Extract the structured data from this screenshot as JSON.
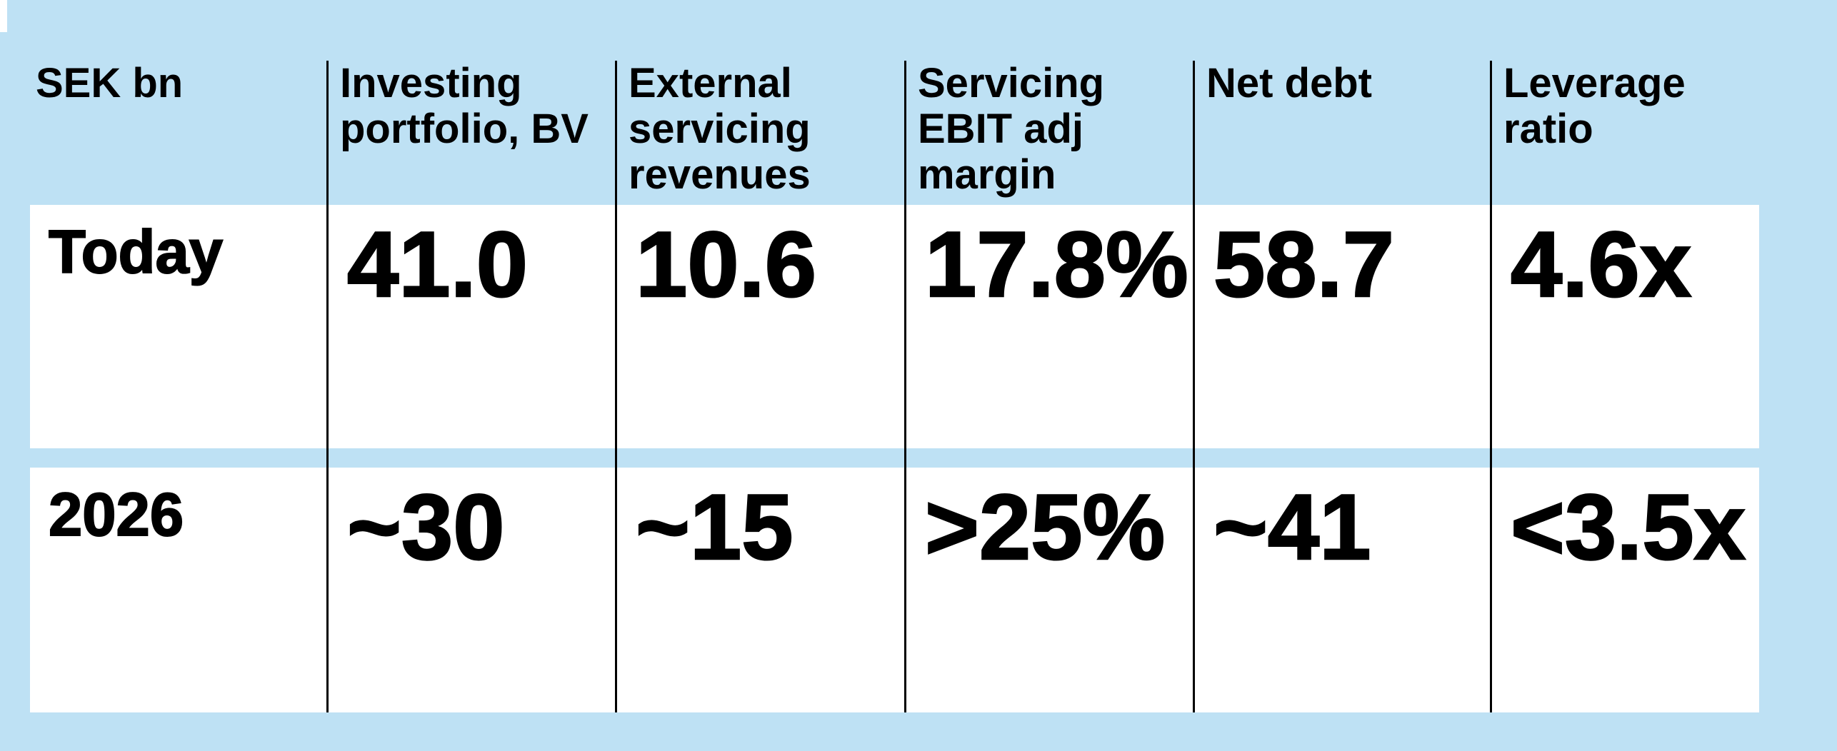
{
  "page": {
    "background_color": "#BEE1F4",
    "row_background": "#FFFFFF",
    "divider_color": "#000000",
    "text_color": "#000000"
  },
  "table": {
    "columns": [
      {
        "header": "SEK bn"
      },
      {
        "header": "Investing\nportfolio, BV"
      },
      {
        "header": "External\nservicing\nrevenues"
      },
      {
        "header": "Servicing\nEBIT adj\nmargin"
      },
      {
        "header": "Net debt"
      },
      {
        "header": "Leverage\nratio"
      }
    ],
    "rows": [
      {
        "label": "Today",
        "values": [
          "41.0",
          "10.6",
          "17.8%",
          "58.7",
          "4.6x"
        ]
      },
      {
        "label": "2026",
        "values": [
          "~30",
          "~15",
          ">25%",
          "~41",
          "<3.5x"
        ]
      }
    ]
  },
  "chart_data": {
    "type": "table",
    "unit": "SEK bn",
    "columns": [
      "Investing portfolio, BV",
      "External servicing revenues",
      "Servicing EBIT adj margin",
      "Net debt",
      "Leverage ratio"
    ],
    "rows": [
      {
        "label": "Today",
        "values": [
          "41.0",
          "10.6",
          "17.8%",
          "58.7",
          "4.6x"
        ]
      },
      {
        "label": "2026",
        "values": [
          "~30",
          "~15",
          ">25%",
          "~41",
          "<3.5x"
        ]
      }
    ]
  }
}
